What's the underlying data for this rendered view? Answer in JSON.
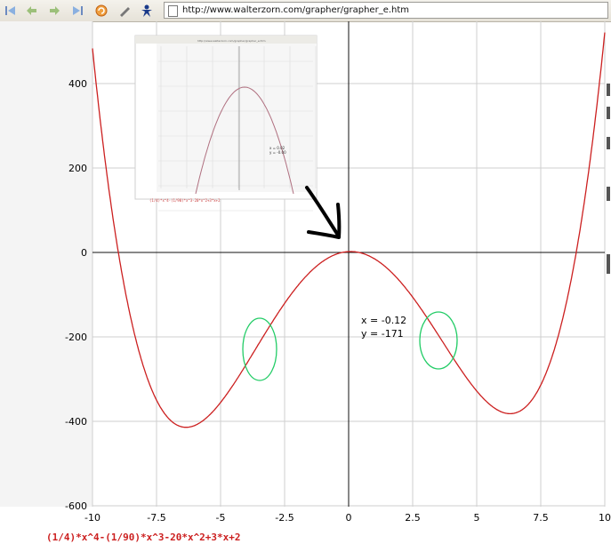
{
  "toolbar": {
    "icons": [
      "back-first-icon",
      "back-icon",
      "forward-icon",
      "forward-last-icon",
      "reload-icon",
      "pencil-icon",
      "bookmark-person-icon"
    ],
    "url": "http://www.walterzorn.com/grapher/grapher_e.htm"
  },
  "grapher": {
    "equation": "(1/4)*x^4-(1/90)*x^3-20*x^2+3*x+2",
    "readout": {
      "x_text": "x = -0.12",
      "y_text": "y = -171"
    },
    "curve_color": "#cc2020",
    "highlight_color": "#22cc66",
    "annotation_color": "#000000"
  },
  "chart_data": {
    "type": "line",
    "function": "(1/4)*x^4-(1/90)*x^3-20*x^2+3*x+2",
    "xlim": [
      -10,
      10
    ],
    "ylim": [
      -600,
      540
    ],
    "xticks": [
      "-10",
      "-7.5",
      "-5",
      "-2.5",
      "0",
      "2.5",
      "5",
      "7.5",
      "10"
    ],
    "yticks": [
      "400",
      "200",
      "0",
      "-200",
      "-400",
      "-600"
    ],
    "grid": true,
    "series": [
      {
        "color": "#cc2020"
      }
    ]
  },
  "inset": {
    "url": "http://www.walterzorn.com/grapher/grapher_e.htm",
    "readout": {
      "x_text": "x = 0.02",
      "y_text": "y = -0.00"
    },
    "equation": "(1/4)*x^4-(1/90)*x^3-20*x^2+3*x+2"
  }
}
